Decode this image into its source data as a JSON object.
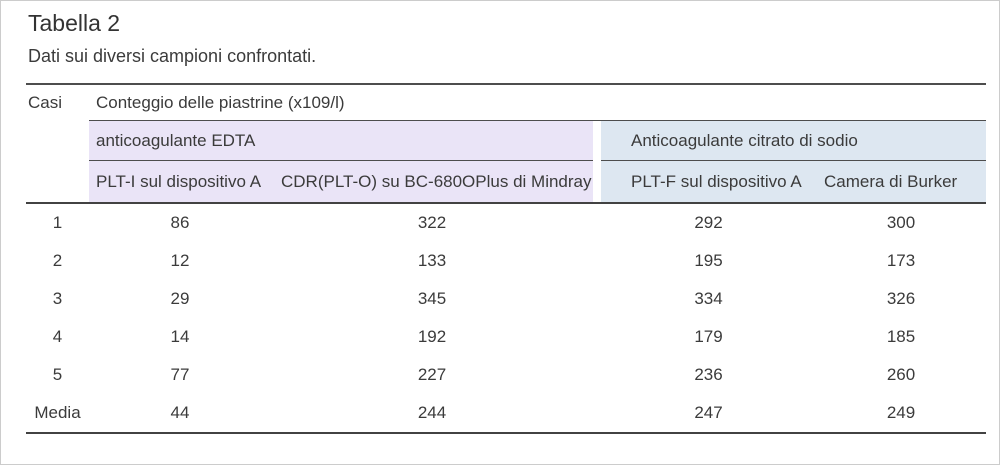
{
  "title": "Tabella 2",
  "subtitle": "Dati sui diversi campioni confrontati.",
  "colors": {
    "edta_bg": "#EAE4F7",
    "citrato_bg": "#DDE7F1",
    "text": "#3B3B3B",
    "rule": "#4D4D4D"
  },
  "table": {
    "corner_label": "Casi",
    "unit_header": "Conteggio delle piastrine (x109/l)",
    "groups": [
      {
        "label": "anticoagulante EDTA",
        "columns": [
          "PLT-I sul dispositivo A",
          "CDR(PLT-O) su BC-680OPlus di Mindray"
        ]
      },
      {
        "label": "Anticoagulante citrato di sodio",
        "columns": [
          "PLT-F sul dispositivo A",
          "Camera di Burker"
        ]
      }
    ],
    "rows": [
      {
        "label": "1",
        "values": [
          "86",
          "322",
          "292",
          "300"
        ]
      },
      {
        "label": "2",
        "values": [
          "12",
          "133",
          "195",
          "173"
        ]
      },
      {
        "label": "3",
        "values": [
          "29",
          "345",
          "334",
          "326"
        ]
      },
      {
        "label": "4",
        "values": [
          "14",
          "192",
          "179",
          "185"
        ]
      },
      {
        "label": "5",
        "values": [
          "77",
          "227",
          "236",
          "260"
        ]
      },
      {
        "label": "Media",
        "values": [
          "44",
          "244",
          "247",
          "249"
        ]
      }
    ]
  }
}
